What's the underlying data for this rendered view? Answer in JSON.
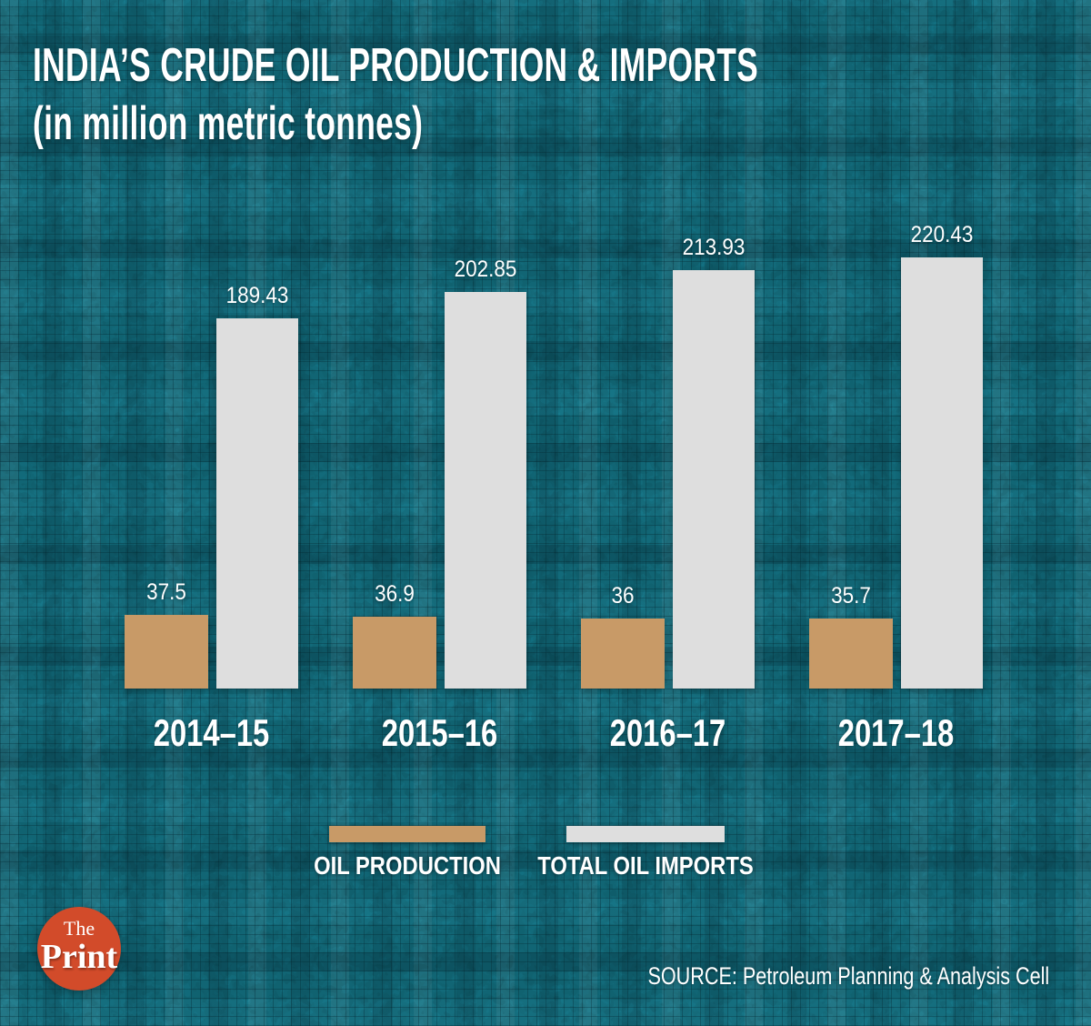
{
  "header": {
    "title": "INDIA’S CRUDE OIL PRODUCTION & IMPORTS",
    "subtitle": "(in million metric tonnes)"
  },
  "chart_data": {
    "type": "bar",
    "title": "INDIA’S CRUDE OIL PRODUCTION & IMPORTS (in million metric tonnes)",
    "categories": [
      "2014–15",
      "2015–16",
      "2016–17",
      "2017–18"
    ],
    "series": [
      {
        "name": "OIL PRODUCTION",
        "color": "#c89a67",
        "values": [
          37.5,
          36.9,
          36,
          35.7
        ]
      },
      {
        "name": "TOTAL OIL IMPORTS",
        "color": "#dedede",
        "values": [
          189.43,
          202.85,
          213.93,
          220.43
        ]
      }
    ],
    "xlabel": "",
    "ylabel": "",
    "ylim": [
      0,
      230
    ],
    "grid": false,
    "axes_shown": false,
    "value_labels_shown": true,
    "legend_position": "bottom"
  },
  "legend": {
    "items": [
      {
        "label": "OIL PRODUCTION",
        "color": "#c89a67"
      },
      {
        "label": "TOTAL OIL IMPORTS",
        "color": "#dedede"
      }
    ]
  },
  "logo": {
    "line1": "The",
    "line2": "Print",
    "bg_color": "#d24b2a"
  },
  "footer": {
    "source": "SOURCE: Petroleum Planning & Analysis Cell"
  },
  "colors": {
    "background": "#0e5764",
    "text": "#ffffff"
  }
}
